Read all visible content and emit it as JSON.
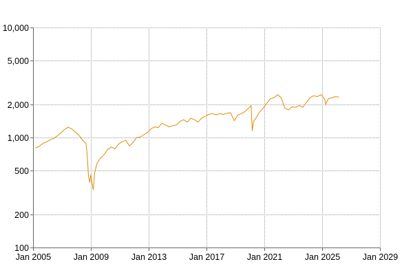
{
  "chart_data": {
    "type": "line",
    "title": "",
    "xlabel": "",
    "ylabel": "",
    "y_scale": "log",
    "ylim": [
      100,
      10000
    ],
    "xlim": [
      "2005-01",
      "2029-01"
    ],
    "grid": true,
    "x_ticks": [
      "Jan 2005",
      "Jan 2009",
      "Jan 2013",
      "Jan 2017",
      "Jan 2021",
      "Jan 2025",
      "Jan 2029"
    ],
    "y_ticks": [
      {
        "value": 10000,
        "label": "10,000"
      },
      {
        "value": 5000,
        "label": "5,000"
      },
      {
        "value": 2000,
        "label": "2,000"
      },
      {
        "value": 1000,
        "label": "1,000"
      },
      {
        "value": 500,
        "label": "500"
      },
      {
        "value": 200,
        "label": "200"
      },
      {
        "value": 100,
        "label": "100"
      }
    ],
    "series": [
      {
        "color": "#e08a00",
        "points": [
          [
            "2005-03",
            800
          ],
          [
            "2005-06",
            830
          ],
          [
            "2005-09",
            880
          ],
          [
            "2005-12",
            910
          ],
          [
            "2006-03",
            950
          ],
          [
            "2006-06",
            980
          ],
          [
            "2006-09",
            1030
          ],
          [
            "2006-12",
            1100
          ],
          [
            "2007-03",
            1180
          ],
          [
            "2007-06",
            1240
          ],
          [
            "2007-09",
            1200
          ],
          [
            "2007-12",
            1120
          ],
          [
            "2008-03",
            1050
          ],
          [
            "2008-06",
            950
          ],
          [
            "2008-09",
            880
          ],
          [
            "2008-10",
            680
          ],
          [
            "2008-11",
            450
          ],
          [
            "2008-12",
            390
          ],
          [
            "2009-01",
            460
          ],
          [
            "2009-02",
            380
          ],
          [
            "2009-03",
            335
          ],
          [
            "2009-04",
            470
          ],
          [
            "2009-06",
            580
          ],
          [
            "2009-09",
            650
          ],
          [
            "2009-12",
            700
          ],
          [
            "2010-03",
            780
          ],
          [
            "2010-06",
            820
          ],
          [
            "2010-09",
            790
          ],
          [
            "2010-12",
            870
          ],
          [
            "2011-03",
            920
          ],
          [
            "2011-06",
            940
          ],
          [
            "2011-09",
            840
          ],
          [
            "2011-12",
            900
          ],
          [
            "2012-03",
            1000
          ],
          [
            "2012-06",
            1010
          ],
          [
            "2012-09",
            1060
          ],
          [
            "2012-12",
            1110
          ],
          [
            "2013-03",
            1200
          ],
          [
            "2013-06",
            1250
          ],
          [
            "2013-09",
            1230
          ],
          [
            "2013-12",
            1350
          ],
          [
            "2014-03",
            1300
          ],
          [
            "2014-06",
            1250
          ],
          [
            "2014-09",
            1280
          ],
          [
            "2014-12",
            1300
          ],
          [
            "2015-03",
            1400
          ],
          [
            "2015-06",
            1450
          ],
          [
            "2015-09",
            1380
          ],
          [
            "2015-12",
            1500
          ],
          [
            "2016-03",
            1450
          ],
          [
            "2016-06",
            1380
          ],
          [
            "2016-09",
            1500
          ],
          [
            "2016-12",
            1560
          ],
          [
            "2017-03",
            1620
          ],
          [
            "2017-06",
            1650
          ],
          [
            "2017-09",
            1600
          ],
          [
            "2017-12",
            1650
          ],
          [
            "2018-03",
            1620
          ],
          [
            "2018-06",
            1660
          ],
          [
            "2018-09",
            1680
          ],
          [
            "2018-12",
            1420
          ],
          [
            "2019-03",
            1600
          ],
          [
            "2019-06",
            1650
          ],
          [
            "2019-09",
            1720
          ],
          [
            "2019-12",
            1850
          ],
          [
            "2020-02",
            1950
          ],
          [
            "2020-03",
            1150
          ],
          [
            "2020-04",
            1400
          ],
          [
            "2020-06",
            1500
          ],
          [
            "2020-09",
            1700
          ],
          [
            "2020-12",
            1850
          ],
          [
            "2021-03",
            2050
          ],
          [
            "2021-06",
            2250
          ],
          [
            "2021-09",
            2300
          ],
          [
            "2021-12",
            2450
          ],
          [
            "2022-03",
            2300
          ],
          [
            "2022-06",
            1850
          ],
          [
            "2022-09",
            1780
          ],
          [
            "2022-12",
            1900
          ],
          [
            "2023-03",
            1880
          ],
          [
            "2023-06",
            1950
          ],
          [
            "2023-09",
            1880
          ],
          [
            "2023-12",
            2100
          ],
          [
            "2024-03",
            2300
          ],
          [
            "2024-06",
            2400
          ],
          [
            "2024-09",
            2350
          ],
          [
            "2024-12",
            2450
          ],
          [
            "2025-03",
            2250
          ],
          [
            "2025-04",
            2000
          ],
          [
            "2025-06",
            2250
          ],
          [
            "2025-09",
            2300
          ],
          [
            "2025-12",
            2350
          ],
          [
            "2026-03",
            2330
          ]
        ]
      }
    ]
  }
}
